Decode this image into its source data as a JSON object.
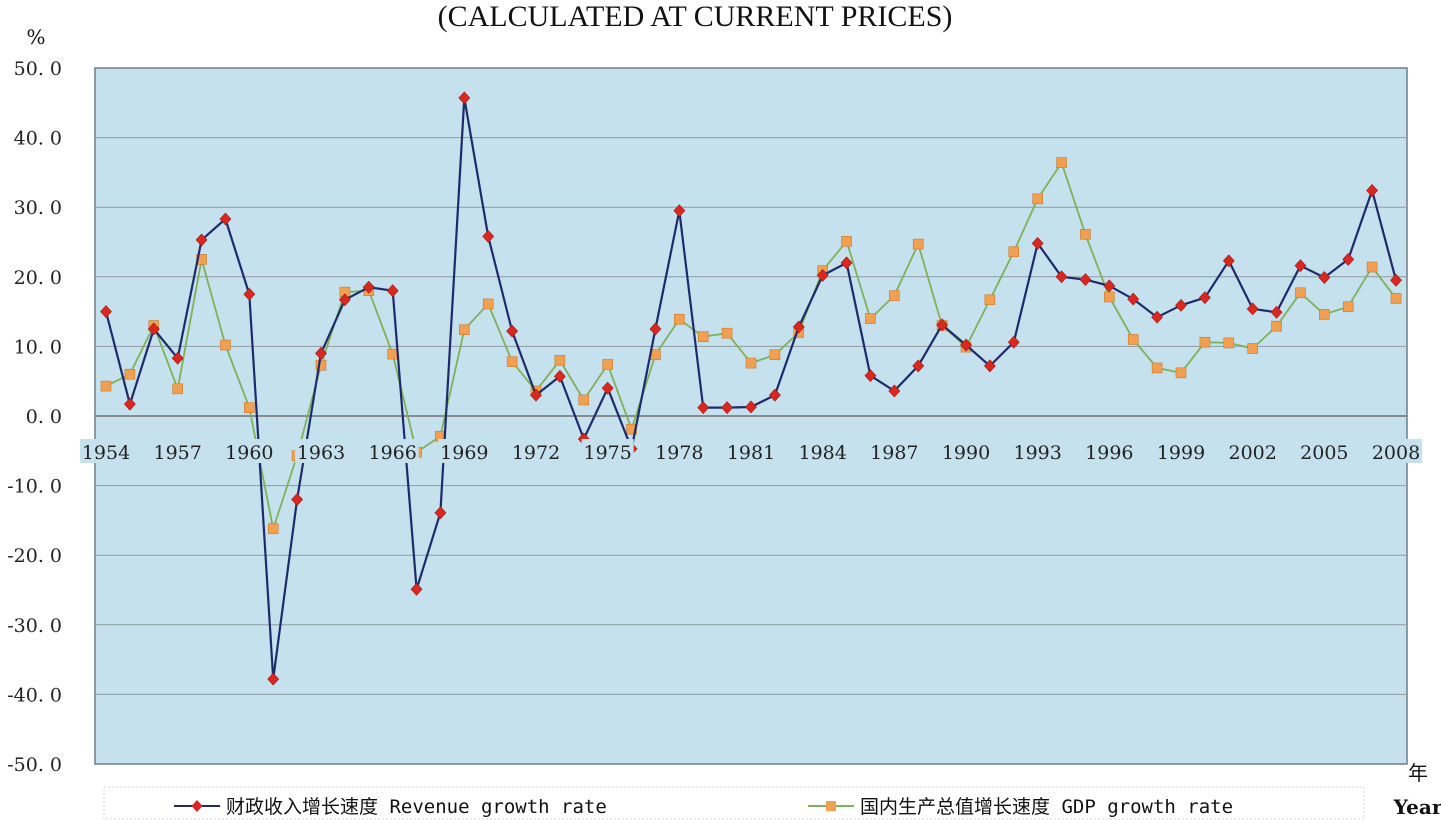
{
  "chart_data": {
    "type": "line",
    "title": "(CALCULATED AT CURRENT PRICES)",
    "ylabel": "%",
    "xlabel_cn": "年",
    "xlabel": "Year",
    "ylim": [
      -50,
      50
    ],
    "yticks": [
      50,
      40,
      30,
      20,
      10,
      0,
      -10,
      -20,
      -30,
      -40,
      -50
    ],
    "ytick_labels": [
      "50. 0",
      "40. 0",
      "30. 0",
      "20. 0",
      "10. 0",
      "0. 0",
      "-10. 0",
      "-20. 0",
      "-30. 0",
      "-40. 0",
      "-50. 0"
    ],
    "xtick_labels": [
      "1954",
      "1957",
      "1960",
      "1963",
      "1966",
      "1969",
      "1972",
      "1975",
      "1978",
      "1981",
      "1984",
      "1987",
      "1990",
      "1993",
      "1996",
      "1999",
      "2002",
      "2005",
      "2008"
    ],
    "x": [
      1954,
      1955,
      1956,
      1957,
      1958,
      1959,
      1960,
      1961,
      1962,
      1963,
      1964,
      1965,
      1966,
      1967,
      1968,
      1969,
      1970,
      1971,
      1972,
      1973,
      1974,
      1975,
      1976,
      1977,
      1978,
      1979,
      1980,
      1981,
      1982,
      1983,
      1984,
      1985,
      1986,
      1987,
      1988,
      1989,
      1990,
      1991,
      1992,
      1993,
      1994,
      1995,
      1996,
      1997,
      1998,
      1999,
      2000,
      2001,
      2002,
      2003,
      2004,
      2005,
      2006,
      2007,
      2008
    ],
    "grid": true,
    "legend_position": "bottom",
    "series": [
      {
        "name": "财政收入增长速度 Revenue growth rate",
        "color": "#1f2a6b",
        "marker_color": "#d8281f",
        "marker": "diamond",
        "values": [
          15.0,
          1.7,
          12.5,
          8.3,
          25.3,
          28.3,
          17.5,
          -37.8,
          -12.0,
          9.0,
          16.7,
          18.5,
          18.0,
          -24.9,
          -13.9,
          45.7,
          25.8,
          12.2,
          3.0,
          5.7,
          -3.3,
          4.0,
          -4.7,
          12.5,
          29.5,
          1.2,
          1.2,
          1.3,
          3.0,
          12.8,
          20.2,
          22.0,
          5.8,
          3.6,
          7.2,
          13.1,
          10.2,
          7.2,
          10.6,
          24.8,
          20.0,
          19.6,
          18.7,
          16.8,
          14.2,
          15.9,
          17.0,
          22.3,
          15.4,
          14.9,
          21.6,
          19.9,
          22.5,
          32.4,
          19.5
        ]
      },
      {
        "name": "国内生产总值增长速度 GDP growth rate",
        "color": "#7fb05a",
        "marker_color": "#f0a050",
        "marker": "square",
        "values": [
          4.3,
          6.0,
          13.0,
          3.9,
          22.5,
          10.2,
          1.2,
          -16.2,
          -5.7,
          7.3,
          17.8,
          18.0,
          8.9,
          -5.2,
          -2.9,
          12.4,
          16.1,
          7.8,
          3.6,
          8.0,
          2.3,
          7.4,
          -1.9,
          8.8,
          13.9,
          11.4,
          11.9,
          7.6,
          8.8,
          12.0,
          20.9,
          25.1,
          14.0,
          17.3,
          24.7,
          13.0,
          9.9,
          16.7,
          23.6,
          31.2,
          36.4,
          26.1,
          17.1,
          11.0,
          6.9,
          6.2,
          10.6,
          10.5,
          9.7,
          12.9,
          17.7,
          14.6,
          15.7,
          21.4,
          16.9
        ]
      }
    ]
  }
}
